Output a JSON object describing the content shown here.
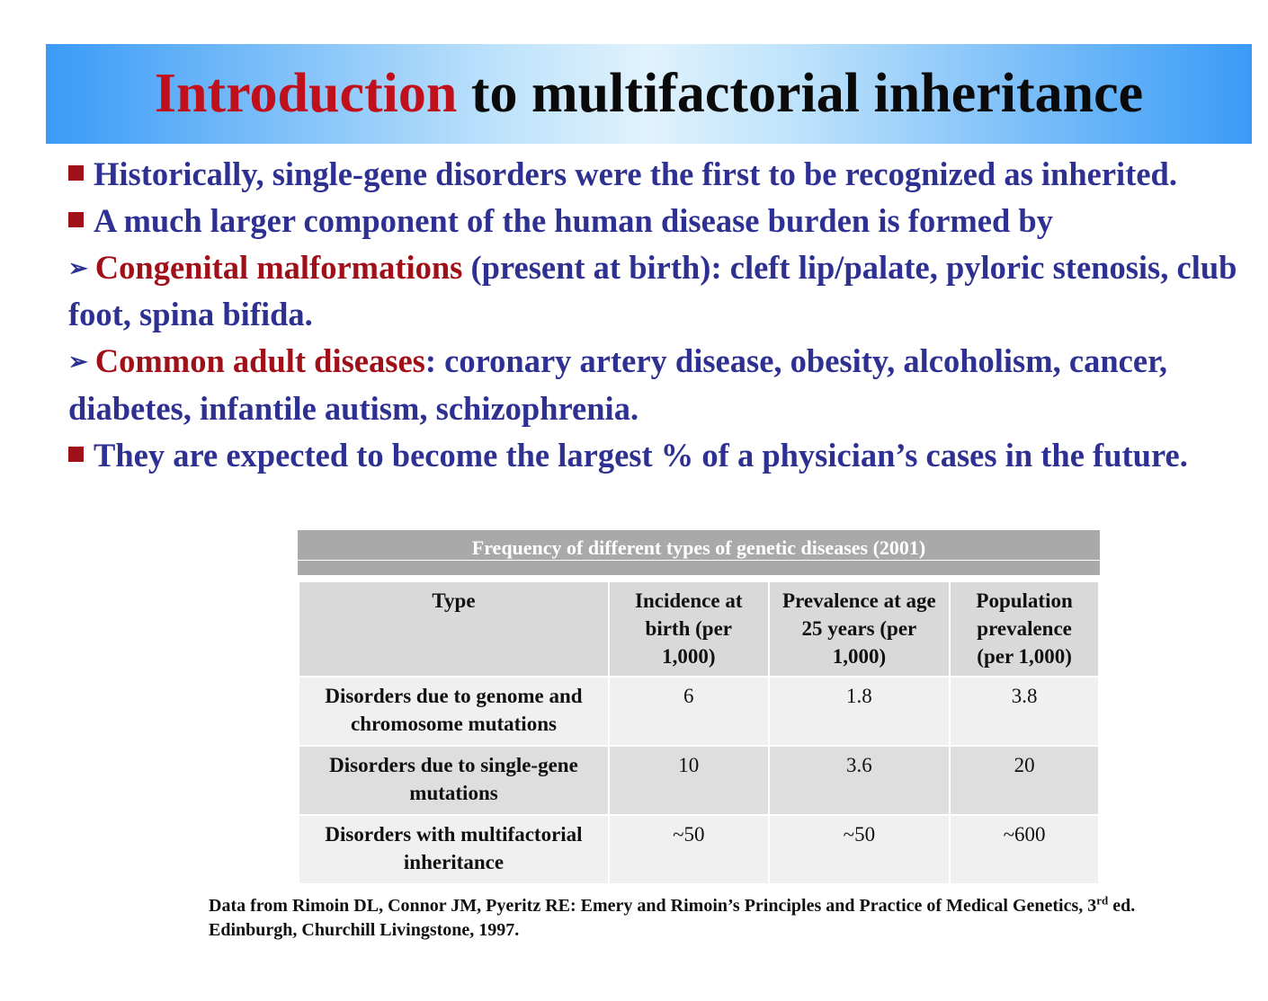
{
  "slide": {
    "title_accent": "Introduction",
    "title_rest": "to multifactorial inheritance",
    "bullets": {
      "b1": "Historically, single-gene disorders were the first to be recognized as inherited.",
      "b2": "A much larger component of the human disease burden is formed by",
      "sub1_highlight": "Congenital malformations",
      "sub1_rest": " (present at birth): cleft lip/palate, pyloric stenosis, club foot, spina bifida.",
      "sub2_highlight": "Common adult diseases",
      "sub2_rest": ": coronary artery disease, obesity, alcoholism, cancer, diabetes, infantile autism, schizophrenia.",
      "b3": "They are expected to become the largest % of a physician’s cases in the future."
    },
    "colors": {
      "title_accent": "#c0101c",
      "body_text": "#2e3192",
      "highlight": "#a01018",
      "bullet_square": "#a01018"
    }
  },
  "table": {
    "caption": "Frequency of different types of genetic diseases (2001)",
    "headers": {
      "type": "Type",
      "incidence": "Incidence at birth (per 1,000)",
      "prevalence25": "Prevalence at age 25 years (per 1,000)",
      "population": "Population prevalence (per 1,000)"
    },
    "rows": [
      {
        "type": "Disorders due to genome and chromosome mutations",
        "incidence": "6",
        "prevalence25": "1.8",
        "population": "3.8"
      },
      {
        "type": "Disorders due to single-gene mutations",
        "incidence": "10",
        "prevalence25": "3.6",
        "population": "20"
      },
      {
        "type": "Disorders with multifactorial inheritance",
        "incidence": "~50",
        "prevalence25": "~50",
        "population": "~600"
      }
    ]
  },
  "reference": {
    "part1": "Data from Rimoin DL, Connor JM, Pyeritz RE: Emery and Rimoin’s Principles and Practice of Medical Genetics, 3",
    "superscript": "rd",
    "part2": " ed. Edinburgh, Churchill Livingstone, 1997."
  }
}
